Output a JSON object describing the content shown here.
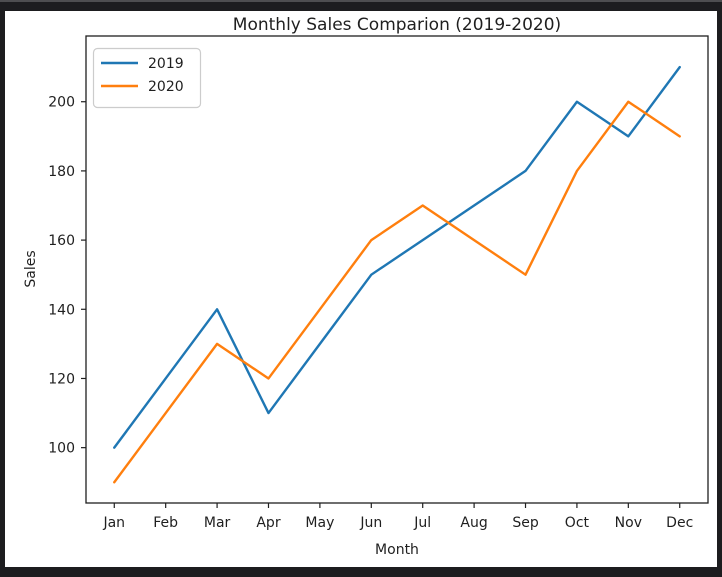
{
  "window": {
    "background": "#1d1d1f",
    "figure_background": "#ffffff"
  },
  "chart_data": {
    "type": "line",
    "title": "Monthly Sales Comparion (2019-2020)",
    "xlabel": "Month",
    "ylabel": "Sales",
    "categories": [
      "Jan",
      "Feb",
      "Mar",
      "Apr",
      "May",
      "Jun",
      "Jul",
      "Aug",
      "Sep",
      "Oct",
      "Nov",
      "Dec"
    ],
    "series": [
      {
        "name": "2019",
        "color": "#1f77b4",
        "values": [
          100,
          120,
          140,
          110,
          130,
          150,
          160,
          170,
          180,
          200,
          190,
          210
        ]
      },
      {
        "name": "2020",
        "color": "#ff7f0e",
        "values": [
          90,
          110,
          130,
          120,
          140,
          160,
          170,
          160,
          150,
          180,
          200,
          190
        ]
      }
    ],
    "yticks": [
      100,
      120,
      140,
      160,
      180,
      200
    ],
    "ylim": [
      84,
      219
    ],
    "xlim": [
      -0.55,
      11.55
    ],
    "grid": false,
    "legend": {
      "position": "upper left",
      "entries": [
        "2019",
        "2020"
      ]
    },
    "axis_color": "#1f1f1f",
    "legend_border_color": "#cccccc"
  }
}
